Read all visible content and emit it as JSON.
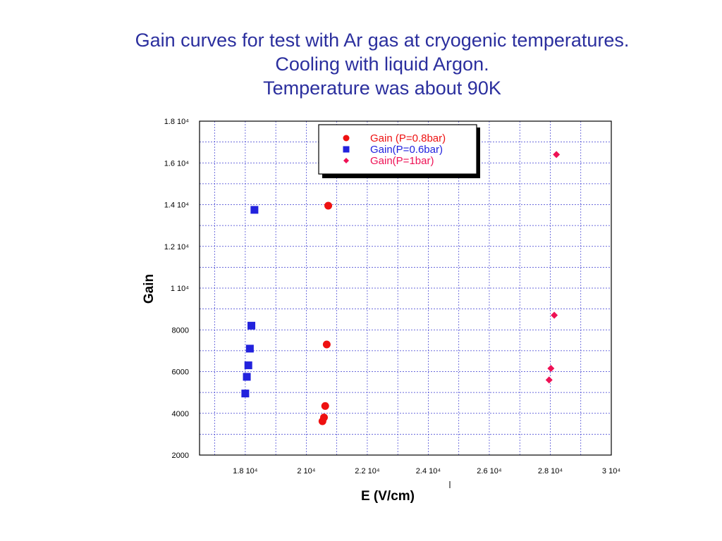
{
  "title": {
    "line1": "Gain curves for test with Ar gas at cryogenic temperatures.",
    "line2": "Cooling with liquid Argon.",
    "line3": "Temperature was about 90K"
  },
  "colors": {
    "title": "#2b2f9e",
    "grid": "#3a3ad0",
    "series_red": "#ee1111",
    "series_blue": "#2222dd",
    "series_pink": "#ee1155"
  },
  "chart_data": {
    "type": "scatter",
    "title": "Gain curves for test with Ar gas at cryogenic temperatures. Cooling with liquid Argon. Temperature was about 90K",
    "xlabel": "E (V/cm)",
    "ylabel": "Gain",
    "xlim": [
      16500,
      30000
    ],
    "ylim": [
      2000,
      18000
    ],
    "x_ticks": [
      18000,
      20000,
      22000,
      24000,
      26000,
      28000,
      30000
    ],
    "x_tick_labels": [
      "1.8 10⁴",
      "2 10⁴",
      "2.2 10⁴",
      "2.4 10⁴",
      "2.6 10⁴",
      "2.8 10⁴",
      "3 10⁴"
    ],
    "y_ticks": [
      2000,
      4000,
      6000,
      8000,
      10000,
      12000,
      14000,
      16000,
      18000
    ],
    "y_tick_labels": [
      "2000",
      "4000",
      "6000",
      "8000",
      "1 10⁴",
      "1.2 10⁴",
      "1.4 10⁴",
      "1.6 10⁴",
      "1.8 10⁴"
    ],
    "grid": true,
    "legend_position": "top-center",
    "series": [
      {
        "name": "Gain (P=0.8bar)",
        "marker": "circle",
        "color": "#ee1111",
        "points": [
          {
            "x": 20530,
            "y": 3620
          },
          {
            "x": 20580,
            "y": 3800
          },
          {
            "x": 20620,
            "y": 4350
          },
          {
            "x": 20670,
            "y": 7300
          },
          {
            "x": 20720,
            "y": 13950
          }
        ]
      },
      {
        "name": "Gain(P=0.6bar)",
        "marker": "square",
        "color": "#2222dd",
        "points": [
          {
            "x": 18000,
            "y": 4950
          },
          {
            "x": 18050,
            "y": 5750
          },
          {
            "x": 18100,
            "y": 6300
          },
          {
            "x": 18150,
            "y": 7100
          },
          {
            "x": 18200,
            "y": 8200
          },
          {
            "x": 18300,
            "y": 13750
          }
        ]
      },
      {
        "name": "Gain(P=1bar)",
        "marker": "diamond",
        "color": "#ee1155",
        "points": [
          {
            "x": 27960,
            "y": 5600
          },
          {
            "x": 28020,
            "y": 6150
          },
          {
            "x": 28130,
            "y": 8700
          },
          {
            "x": 28200,
            "y": 16400
          }
        ]
      }
    ]
  }
}
